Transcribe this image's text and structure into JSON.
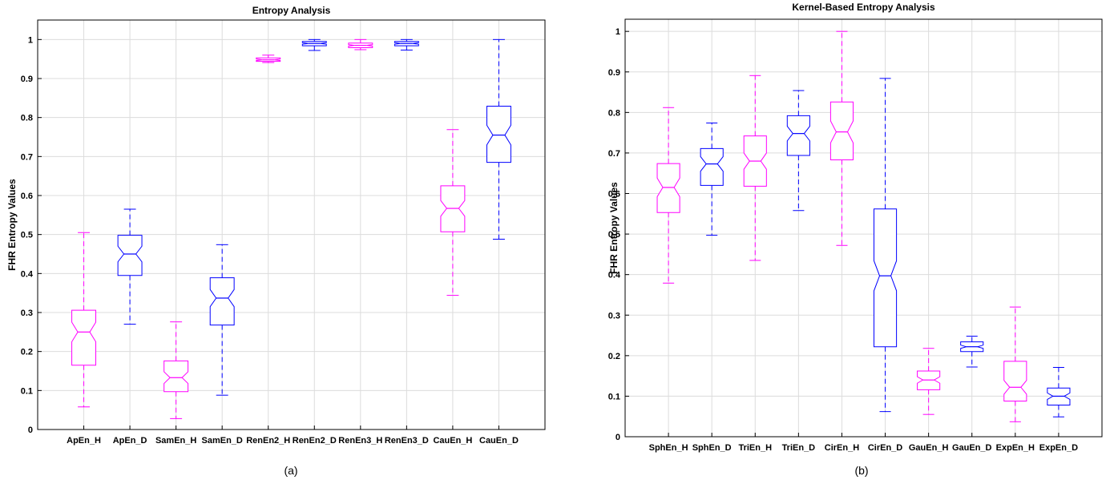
{
  "colors": {
    "magenta": "#ff00ff",
    "blue": "#0000ff"
  },
  "chart_data": [
    {
      "type": "box",
      "panel_label": "(a)",
      "title": "Entropy Analysis",
      "xlabel": "",
      "ylabel": "FHR Entropy Values",
      "ylim": [
        0,
        1.05
      ],
      "yticks": [
        "0",
        "0.1",
        "0.2",
        "0.3",
        "0.4",
        "0.5",
        "0.6",
        "0.7",
        "0.8",
        "0.9",
        "1"
      ],
      "grid": true,
      "notched": true,
      "categories": [
        "ApEn_H",
        "ApEn_D",
        "SamEn_H",
        "SamEn_D",
        "RenEn2_H",
        "RenEn2_D",
        "RenEn3_H",
        "RenEn3_D",
        "CauEn_H",
        "CauEn_D"
      ],
      "series_colors": [
        "magenta",
        "blue",
        "magenta",
        "blue",
        "magenta",
        "blue",
        "magenta",
        "blue",
        "magenta",
        "blue"
      ],
      "boxes": [
        {
          "min": 0.058,
          "q1": 0.165,
          "median": 0.25,
          "q3": 0.306,
          "max": 0.505,
          "notch": [
            0.225,
            0.275
          ]
        },
        {
          "min": 0.27,
          "q1": 0.395,
          "median": 0.45,
          "q3": 0.498,
          "max": 0.565,
          "notch": [
            0.43,
            0.47
          ]
        },
        {
          "min": 0.028,
          "q1": 0.097,
          "median": 0.133,
          "q3": 0.176,
          "max": 0.276,
          "notch": [
            0.118,
            0.148
          ]
        },
        {
          "min": 0.088,
          "q1": 0.268,
          "median": 0.337,
          "q3": 0.389,
          "max": 0.474,
          "notch": [
            0.315,
            0.359
          ]
        },
        {
          "min": 0.941,
          "q1": 0.944,
          "median": 0.948,
          "q3": 0.953,
          "max": 0.96,
          "notch": [
            0.946,
            0.95
          ]
        },
        {
          "min": 0.972,
          "q1": 0.984,
          "median": 0.99,
          "q3": 0.995,
          "max": 1.0,
          "notch": [
            0.988,
            0.992
          ]
        },
        {
          "min": 0.974,
          "q1": 0.979,
          "median": 0.985,
          "q3": 0.991,
          "max": 1.0,
          "notch": [
            0.983,
            0.987
          ]
        },
        {
          "min": 0.973,
          "q1": 0.984,
          "median": 0.99,
          "q3": 0.995,
          "max": 1.0,
          "notch": [
            0.988,
            0.992
          ]
        },
        {
          "min": 0.344,
          "q1": 0.507,
          "median": 0.567,
          "q3": 0.625,
          "max": 0.769,
          "notch": [
            0.547,
            0.587
          ]
        },
        {
          "min": 0.488,
          "q1": 0.685,
          "median": 0.755,
          "q3": 0.829,
          "max": 1.0,
          "notch": [
            0.73,
            0.78
          ]
        }
      ]
    },
    {
      "type": "box",
      "panel_label": "(b)",
      "title": "Kernel-Based Entropy Analysis",
      "xlabel": "",
      "ylabel": "FHR Entropy Values",
      "ylim": [
        0,
        1.03
      ],
      "yticks": [
        "0",
        "0.1",
        "0.2",
        "0.3",
        "0.4",
        "0.5",
        "0.6",
        "0.7",
        "0.8",
        "0.9",
        "1"
      ],
      "grid": true,
      "notched": true,
      "categories": [
        "SphEn_H",
        "SphEn_D",
        "TriEn_H",
        "TriEn_D",
        "CirEn_H",
        "CirEn_D",
        "GauEn_H",
        "GauEn_D",
        "ExpEn_H",
        "ExpEn_D"
      ],
      "series_colors": [
        "magenta",
        "blue",
        "magenta",
        "blue",
        "magenta",
        "blue",
        "magenta",
        "blue",
        "magenta",
        "blue"
      ],
      "boxes": [
        {
          "min": 0.379,
          "q1": 0.553,
          "median": 0.615,
          "q3": 0.674,
          "max": 0.812,
          "notch": [
            0.592,
            0.638
          ]
        },
        {
          "min": 0.497,
          "q1": 0.62,
          "median": 0.673,
          "q3": 0.711,
          "max": 0.774,
          "notch": [
            0.655,
            0.691
          ]
        },
        {
          "min": 0.435,
          "q1": 0.618,
          "median": 0.68,
          "q3": 0.742,
          "max": 0.891,
          "notch": [
            0.66,
            0.7
          ]
        },
        {
          "min": 0.558,
          "q1": 0.694,
          "median": 0.748,
          "q3": 0.792,
          "max": 0.854,
          "notch": [
            0.73,
            0.766
          ]
        },
        {
          "min": 0.472,
          "q1": 0.683,
          "median": 0.752,
          "q3": 0.826,
          "max": 1.0,
          "notch": [
            0.725,
            0.779
          ]
        },
        {
          "min": 0.062,
          "q1": 0.222,
          "median": 0.397,
          "q3": 0.562,
          "max": 0.884,
          "notch": [
            0.36,
            0.434
          ]
        },
        {
          "min": 0.055,
          "q1": 0.116,
          "median": 0.14,
          "q3": 0.162,
          "max": 0.218,
          "notch": [
            0.132,
            0.148
          ]
        },
        {
          "min": 0.172,
          "q1": 0.21,
          "median": 0.222,
          "q3": 0.234,
          "max": 0.248,
          "notch": [
            0.218,
            0.226
          ]
        },
        {
          "min": 0.037,
          "q1": 0.088,
          "median": 0.122,
          "q3": 0.186,
          "max": 0.32,
          "notch": [
            0.105,
            0.139
          ]
        },
        {
          "min": 0.049,
          "q1": 0.078,
          "median": 0.1,
          "q3": 0.12,
          "max": 0.171,
          "notch": [
            0.092,
            0.108
          ]
        }
      ]
    }
  ]
}
